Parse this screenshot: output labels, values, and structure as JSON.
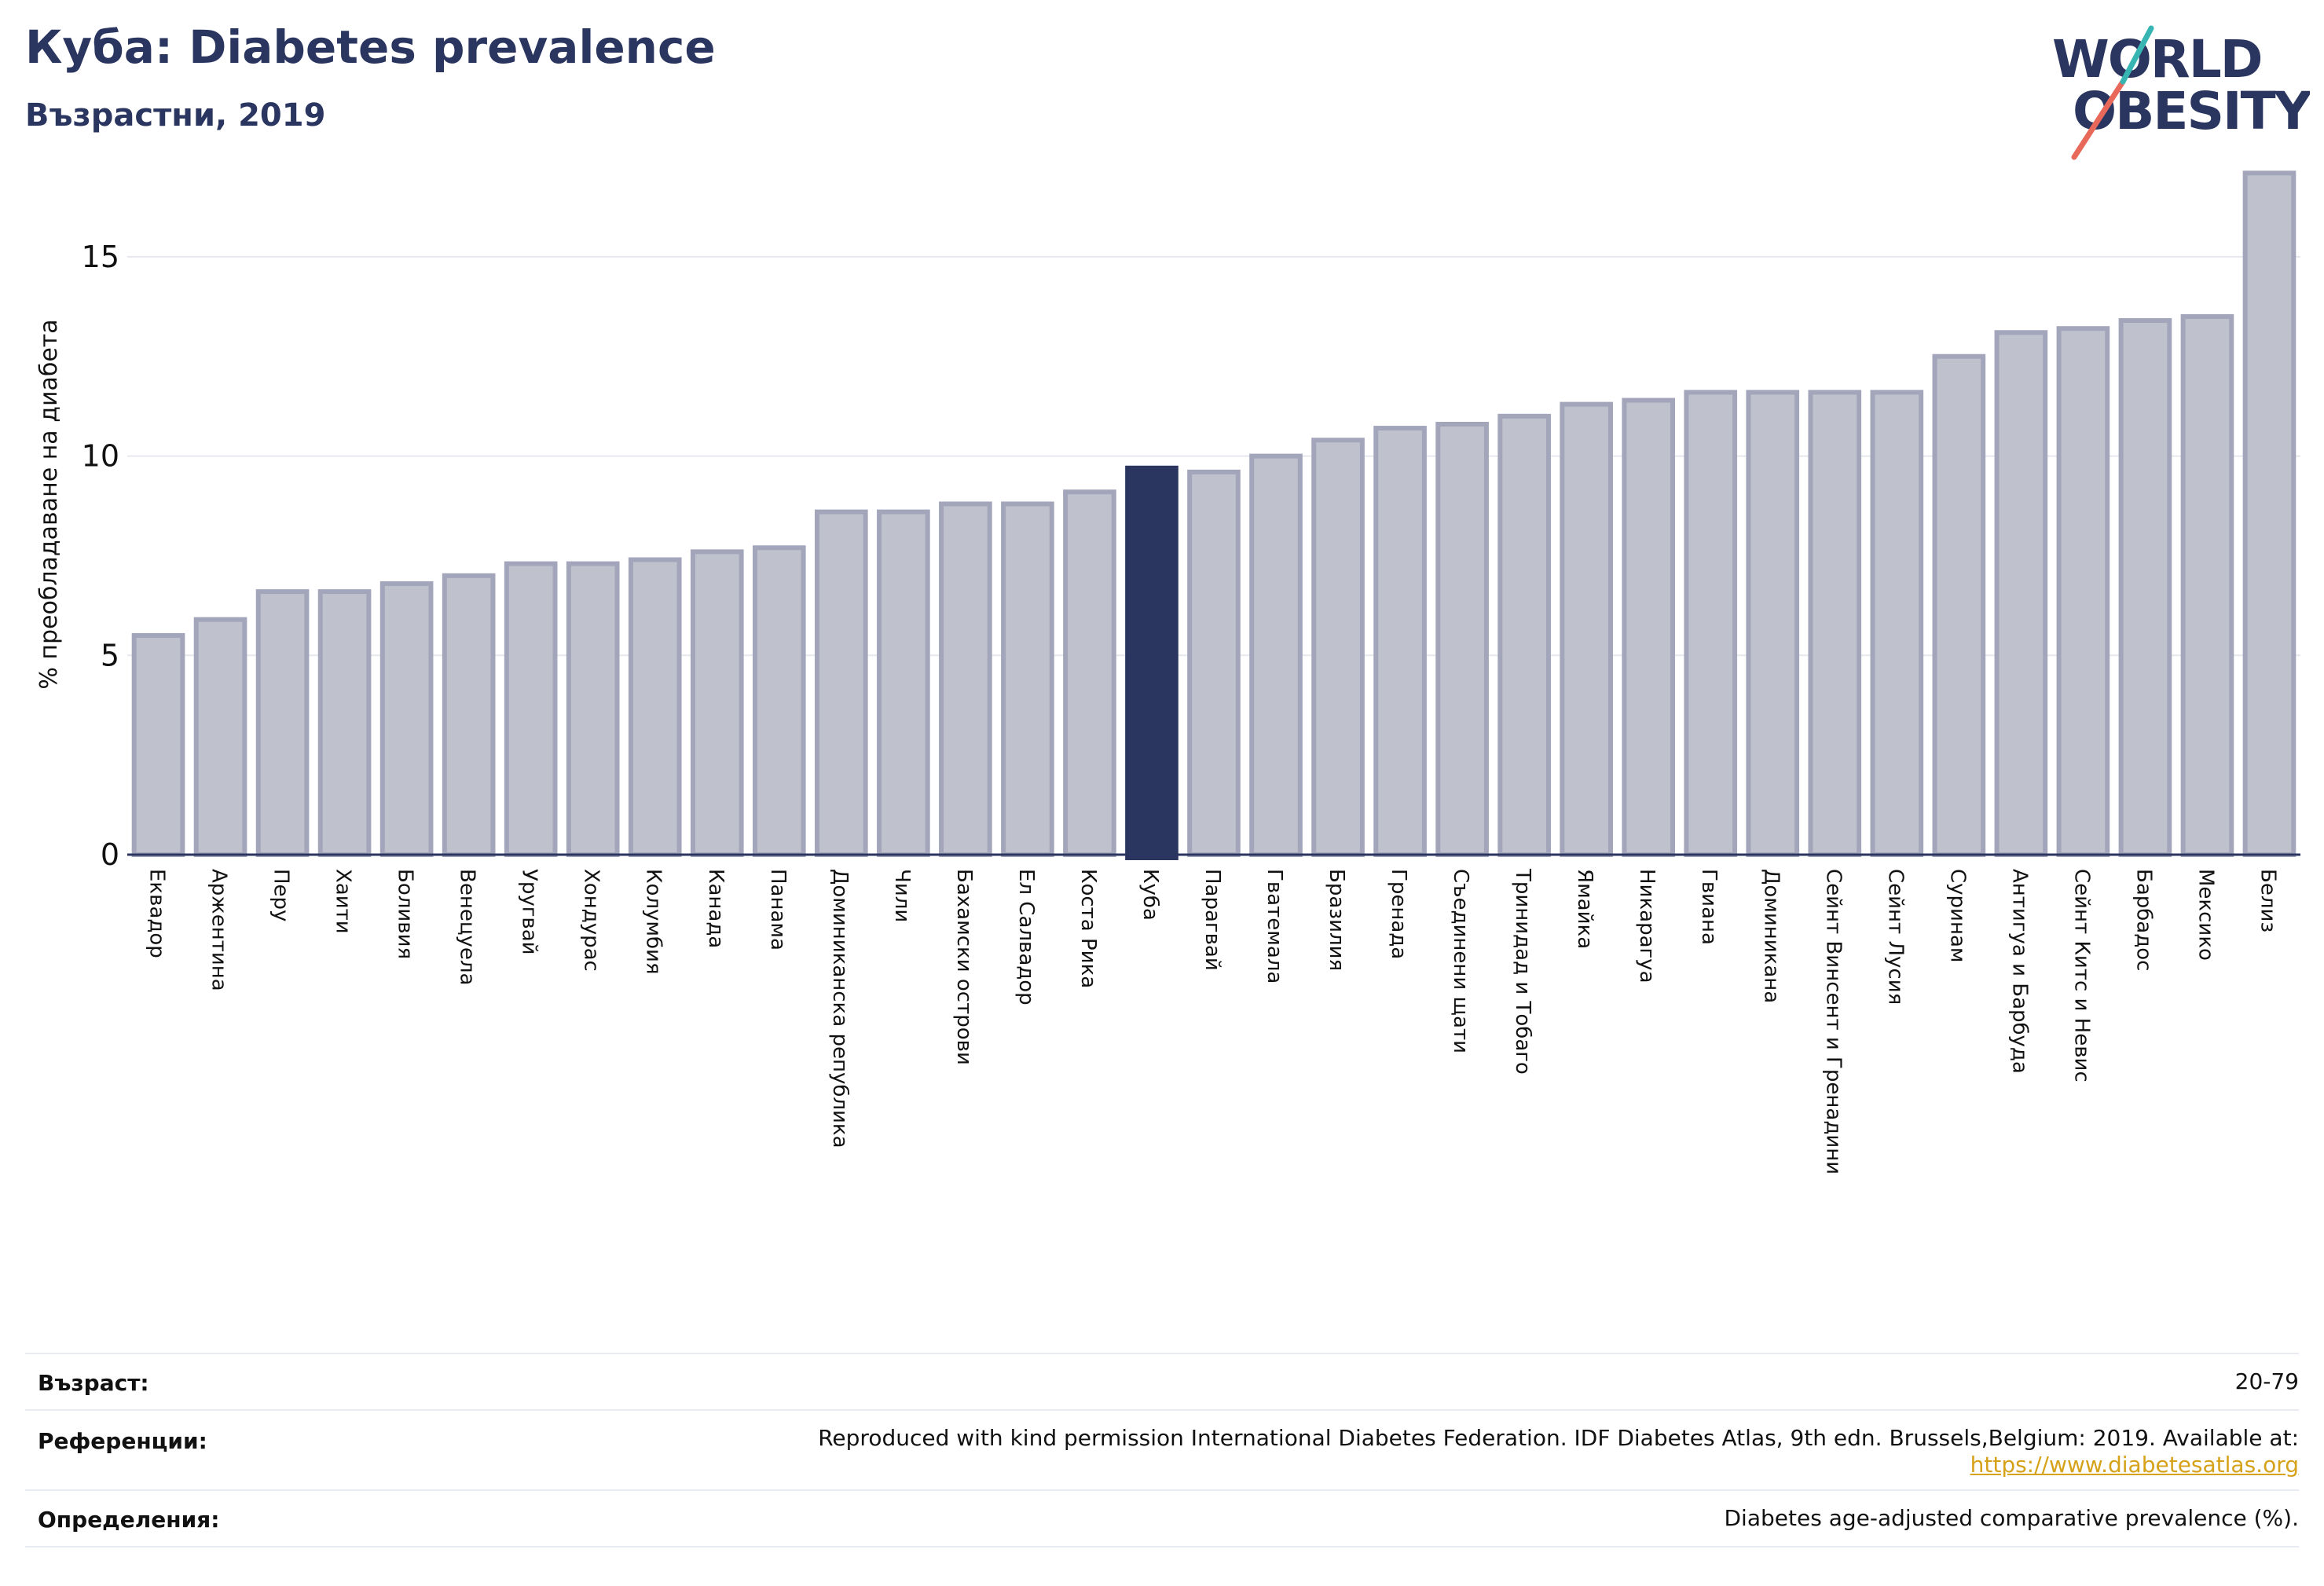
{
  "header": {
    "title": "Куба: Diabetes prevalence",
    "subtitle": "Възрастни, 2019"
  },
  "logo": {
    "line1": "WORLD",
    "line2": "OBESITY",
    "icon": "world-obesity-logo"
  },
  "colors": {
    "highlight": "#2b3660",
    "bar_fill": "#bfc1cd",
    "bar_edge": "#a3a6bb",
    "text": "#2b3660"
  },
  "chart_data": {
    "type": "bar",
    "ylabel": "% преобладаване на диабета",
    "ylim": [
      0,
      17.5
    ],
    "yticks": [
      0,
      5,
      10,
      15
    ],
    "grid": true,
    "highlight": "Куба",
    "categories": [
      "Еквадор",
      "Аржентина",
      "Перу",
      "Хаити",
      "Боливия",
      "Венецуела",
      "Уругвай",
      "Хондурас",
      "Колумбия",
      "Канада",
      "Панама",
      "Доминиканска република",
      "Чили",
      "Бахамски острови",
      "Ел Салвадор",
      "Коста Рика",
      "Куба",
      "Парагвай",
      "Гватемала",
      "Бразилия",
      "Гренада",
      "Съединени щати",
      "Тринидад и Тобаго",
      "Ямайка",
      "Никарагуа",
      "Гвиана",
      "Доминикана",
      "Сейнт Винсент и Гренадини",
      "Сейнт Лусия",
      "Суринам",
      "Антигуа и Барбуда",
      "Сейнт Китс и Невис",
      "Барбадос",
      "Мексико",
      "Белиз"
    ],
    "values": [
      5.5,
      5.9,
      6.6,
      6.6,
      6.8,
      7.0,
      7.3,
      7.3,
      7.4,
      7.6,
      7.7,
      8.6,
      8.6,
      8.8,
      8.8,
      9.1,
      9.7,
      9.6,
      10.0,
      10.4,
      10.7,
      10.8,
      11.0,
      11.3,
      11.4,
      11.6,
      11.6,
      11.6,
      11.6,
      12.5,
      13.1,
      13.2,
      13.4,
      13.5,
      17.1
    ]
  },
  "footer": {
    "age_label": "Възраст:",
    "age_value": "20-79",
    "ref_label": "Референции:",
    "ref_text": "Reproduced with kind permission International Diabetes Federation. IDF Diabetes Atlas, 9th edn. Brussels,Belgium: 2019. Available at:",
    "ref_link": "https://www.diabetesatlas.org",
    "def_label": "Определения:",
    "def_text": "Diabetes age-adjusted comparative prevalence (%)."
  }
}
